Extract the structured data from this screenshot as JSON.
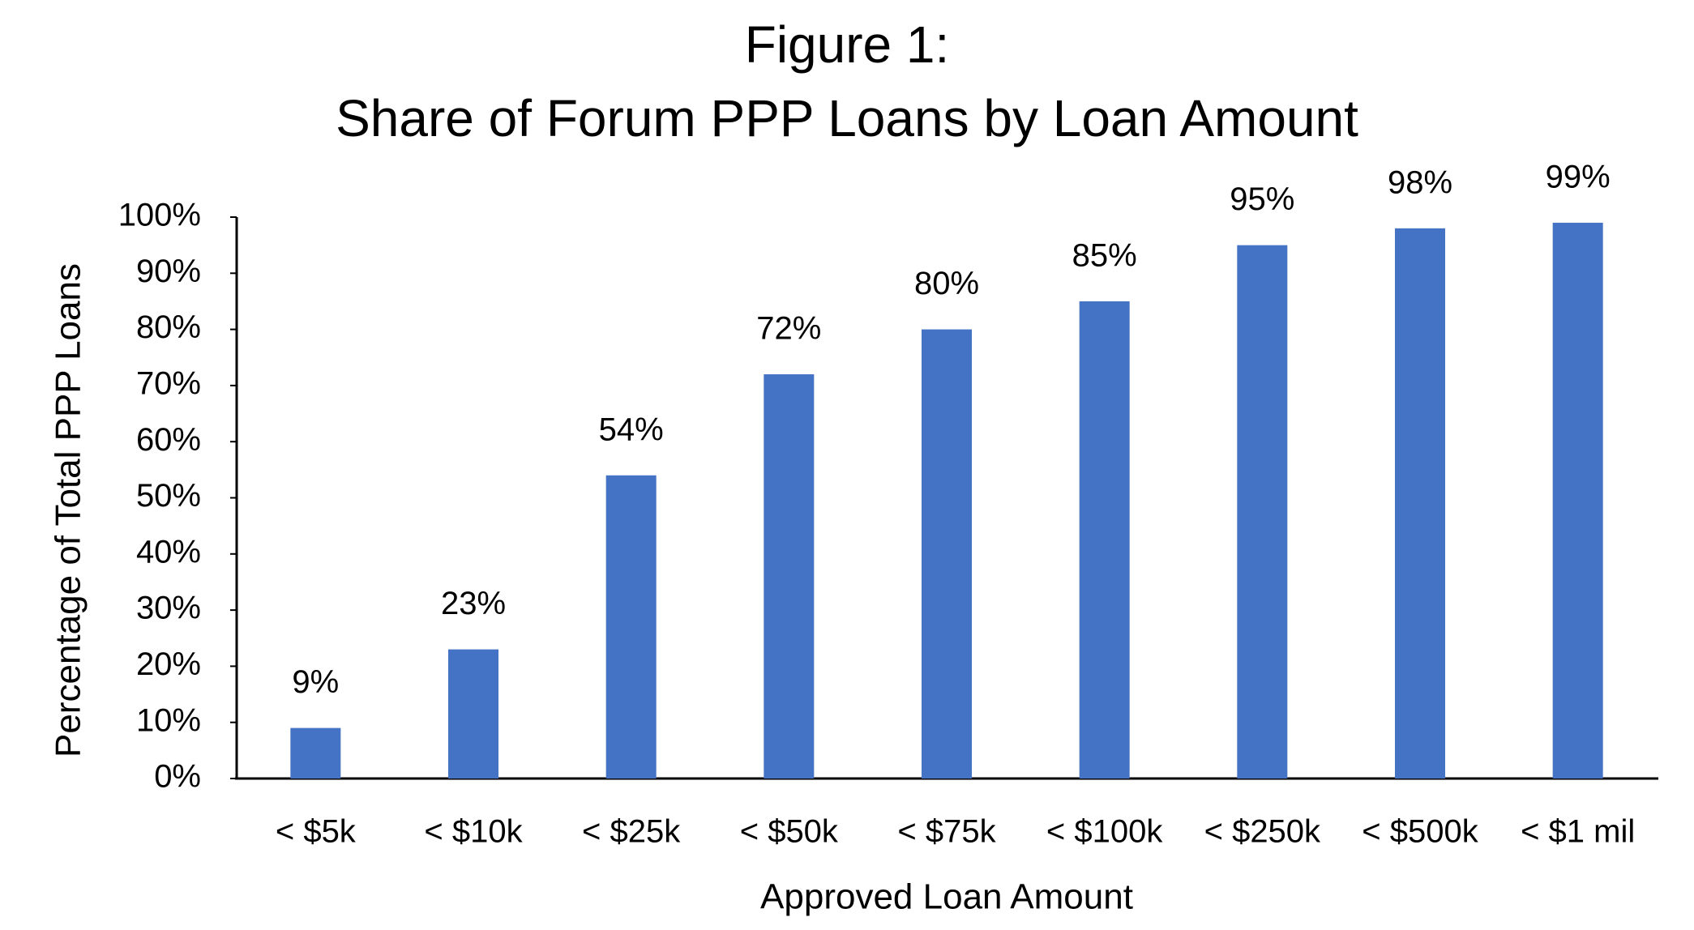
{
  "chart_data": {
    "type": "bar",
    "title": [
      "Figure 1:",
      "Share of Forum PPP Loans by Loan Amount"
    ],
    "x_label": "Approved Loan Amount",
    "y_label": "Percentage of Total PPP Loans",
    "categories": [
      "< $5k",
      "< $10k",
      "< $25k",
      "< $50k",
      "< $75k",
      "< $100k",
      "< $250k",
      "< $500k",
      "< $1 mil"
    ],
    "values": [
      9,
      23,
      54,
      72,
      80,
      85,
      95,
      98,
      99
    ],
    "value_labels": [
      "9%",
      "23%",
      "54%",
      "72%",
      "80%",
      "85%",
      "95%",
      "98%",
      "99%"
    ],
    "color": "#4472c4",
    "ylim": [
      0,
      100
    ],
    "yticks": [
      {
        "value": 0,
        "label": "0%"
      },
      {
        "value": 10,
        "label": "10%"
      },
      {
        "value": 20,
        "label": "20%"
      },
      {
        "value": 30,
        "label": "30%"
      },
      {
        "value": 40,
        "label": "40%"
      },
      {
        "value": 50,
        "label": "50%"
      },
      {
        "value": 60,
        "label": "60%"
      },
      {
        "value": 70,
        "label": "70%"
      },
      {
        "value": 80,
        "label": "80%"
      },
      {
        "value": 90,
        "label": "90%"
      },
      {
        "value": 100,
        "label": "100%"
      }
    ],
    "grid": false
  }
}
